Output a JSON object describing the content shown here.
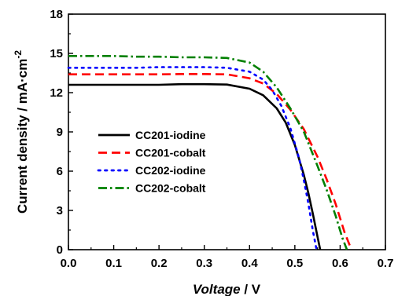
{
  "chart_data": {
    "type": "line",
    "xlabel_italic": "Voltage",
    "xlabel_rest": " / V",
    "ylabel_main": "Current density / mA·cm",
    "ylabel_sup": "-2",
    "xlim": [
      0.0,
      0.7
    ],
    "ylim": [
      0,
      18
    ],
    "x_ticks": [
      0.0,
      0.1,
      0.2,
      0.3,
      0.4,
      0.5,
      0.6,
      0.7
    ],
    "x_tick_labels": [
      "0.0",
      "0.1",
      "0.2",
      "0.3",
      "0.4",
      "0.5",
      "0.6",
      "0.7"
    ],
    "y_ticks": [
      0,
      3,
      6,
      9,
      12,
      15,
      18
    ],
    "y_tick_labels": [
      "0",
      "3",
      "6",
      "9",
      "12",
      "15",
      "18"
    ],
    "grid": false,
    "legend_position": "center-left",
    "series": [
      {
        "name": "CC201-iodine",
        "color": "#000000",
        "dash": "solid",
        "x": [
          0.0,
          0.05,
          0.1,
          0.15,
          0.2,
          0.25,
          0.3,
          0.35,
          0.4,
          0.43,
          0.46,
          0.48,
          0.5,
          0.52,
          0.53,
          0.54,
          0.55,
          0.556
        ],
        "y": [
          12.6,
          12.6,
          12.6,
          12.6,
          12.6,
          12.65,
          12.65,
          12.62,
          12.3,
          11.8,
          10.8,
          9.7,
          8.0,
          5.7,
          4.3,
          2.7,
          1.0,
          0
        ]
      },
      {
        "name": "CC201-cobalt",
        "color": "#ff0000",
        "dash": "dashed",
        "x": [
          0.0,
          0.05,
          0.1,
          0.15,
          0.2,
          0.25,
          0.3,
          0.35,
          0.4,
          0.43,
          0.46,
          0.49,
          0.52,
          0.55,
          0.57,
          0.59,
          0.61,
          0.625
        ],
        "y": [
          13.4,
          13.4,
          13.4,
          13.4,
          13.4,
          13.42,
          13.42,
          13.4,
          13.1,
          12.7,
          11.9,
          10.7,
          9.2,
          7.1,
          5.4,
          3.5,
          1.3,
          0
        ]
      },
      {
        "name": "CC202-iodine",
        "color": "#0000ff",
        "dash": "dotted",
        "x": [
          0.0,
          0.05,
          0.1,
          0.15,
          0.2,
          0.25,
          0.3,
          0.35,
          0.4,
          0.43,
          0.45,
          0.47,
          0.49,
          0.51,
          0.52,
          0.53,
          0.54,
          0.548
        ],
        "y": [
          13.9,
          13.9,
          13.9,
          13.9,
          13.95,
          13.95,
          13.95,
          13.9,
          13.6,
          13.0,
          12.2,
          11.0,
          9.3,
          6.9,
          5.3,
          3.5,
          1.4,
          0
        ]
      },
      {
        "name": "CC202-cobalt",
        "color": "#008000",
        "dash": "dashdot",
        "x": [
          0.0,
          0.05,
          0.1,
          0.15,
          0.2,
          0.25,
          0.3,
          0.35,
          0.4,
          0.43,
          0.46,
          0.49,
          0.52,
          0.55,
          0.57,
          0.59,
          0.605,
          0.615
        ],
        "y": [
          14.8,
          14.8,
          14.8,
          14.75,
          14.75,
          14.7,
          14.7,
          14.65,
          14.3,
          13.6,
          12.4,
          10.8,
          9.0,
          6.4,
          4.6,
          2.6,
          0.9,
          0
        ]
      }
    ]
  }
}
